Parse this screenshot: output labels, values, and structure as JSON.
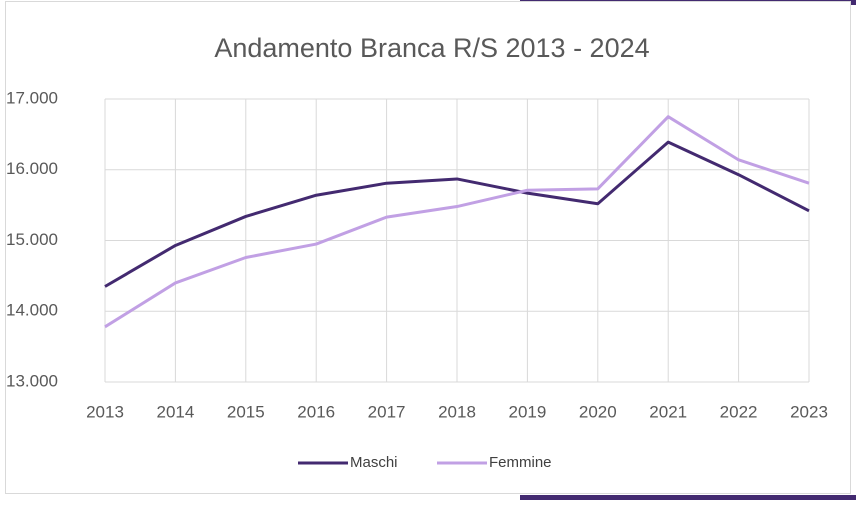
{
  "chart_data": {
    "type": "line",
    "title": "Andamento Branca R/S 2013 - 2024",
    "categories": [
      "2013",
      "2014",
      "2015",
      "2016",
      "2017",
      "2018",
      "2019",
      "2020",
      "2021",
      "2022",
      "2023"
    ],
    "series": [
      {
        "name": "Maschi",
        "color": "#432a70",
        "values": [
          14350,
          14930,
          15340,
          15640,
          15810,
          15870,
          15670,
          15520,
          16390,
          15930,
          15420
        ]
      },
      {
        "name": "Femmine",
        "color": "#c1a0e4",
        "values": [
          13780,
          14400,
          14760,
          14950,
          15330,
          15480,
          15710,
          15730,
          16750,
          16140,
          15810
        ]
      }
    ],
    "ylim": [
      13000,
      17000
    ],
    "yticks": [
      {
        "value": 13000,
        "label": "13.000"
      },
      {
        "value": 14000,
        "label": "14.000"
      },
      {
        "value": 15000,
        "label": "15.000"
      },
      {
        "value": 16000,
        "label": "16.000"
      },
      {
        "value": 17000,
        "label": "17.000"
      }
    ],
    "grid": true,
    "legend": "bottom"
  }
}
